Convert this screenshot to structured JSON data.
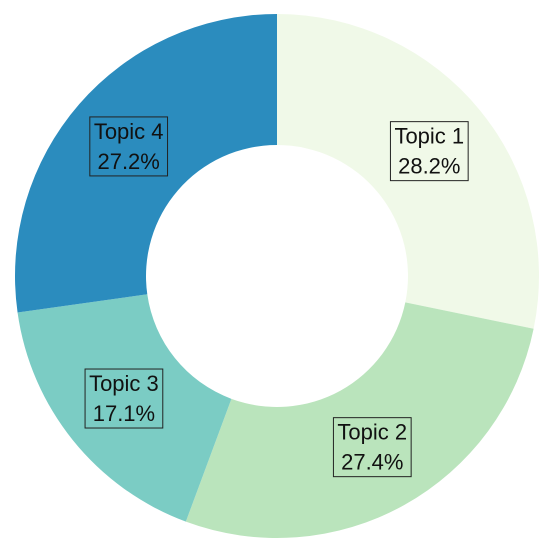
{
  "chart_data": {
    "type": "donut",
    "categories": [
      "Topic 1",
      "Topic 2",
      "Topic 3",
      "Topic 4"
    ],
    "values": [
      28.2,
      27.4,
      17.1,
      27.2
    ],
    "value_labels": [
      "28.2%",
      "27.4%",
      "17.1%",
      "27.2%"
    ],
    "colors": [
      "#f0f9e8",
      "#bae4bc",
      "#7bccc4",
      "#2b8cbe"
    ]
  }
}
